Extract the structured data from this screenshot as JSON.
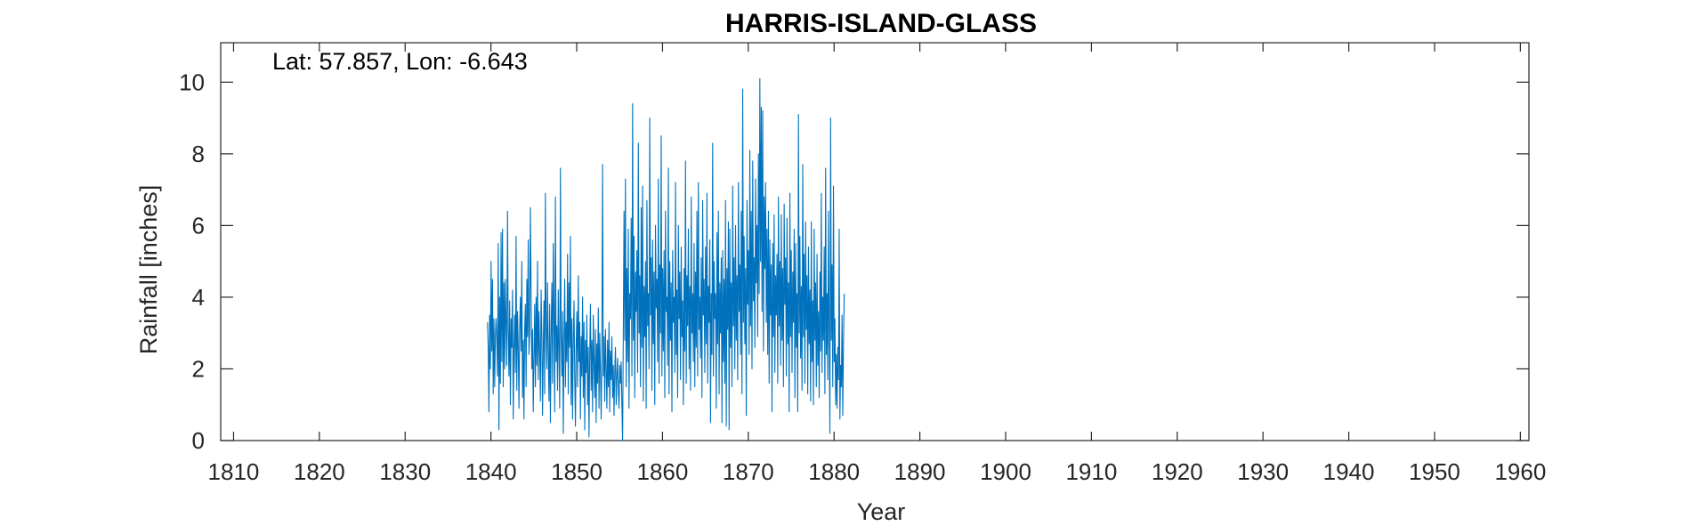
{
  "chart_data": {
    "type": "line",
    "title": "HARRIS-ISLAND-GLASS",
    "xlabel": "Year",
    "ylabel": "Rainfall [inches]",
    "annotation": "Lat: 57.857, Lon: -6.643",
    "xlim": [
      1808.5,
      1961
    ],
    "ylim": [
      0,
      11.1
    ],
    "xticks": [
      1810,
      1820,
      1830,
      1840,
      1850,
      1860,
      1870,
      1880,
      1890,
      1900,
      1910,
      1920,
      1930,
      1940,
      1950,
      1960
    ],
    "yticks": [
      0,
      2,
      4,
      6,
      8,
      10
    ],
    "grid": false,
    "line_color": "#0072BD",
    "series": [
      {
        "x_start": 1839.6,
        "x_step": 0.08333,
        "values": [
          3.3,
          2.6,
          0.8,
          3.5,
          2.0,
          5.0,
          2.5,
          4.5,
          1.3,
          3.4,
          1.5,
          2.9,
          3.4,
          2.8,
          1.8,
          5.5,
          0.3,
          4.0,
          1.6,
          5.8,
          2.2,
          5.9,
          1.5,
          4.4,
          2.0,
          4.5,
          3.2,
          2.1,
          6.4,
          3.1,
          1.8,
          3.9,
          1.0,
          3.4,
          2.6,
          4.2,
          0.6,
          2.5,
          3.5,
          1.9,
          5.7,
          1.4,
          3.6,
          2.6,
          0.9,
          3.1,
          4.0,
          2.5,
          5.0,
          1.2,
          2.8,
          0.6,
          3.1,
          3.8,
          1.5,
          4.5,
          2.9,
          5.6,
          2.4,
          3.0,
          6.5,
          4.2,
          2.0,
          3.1,
          0.8,
          2.3,
          3.8,
          1.5,
          4.0,
          2.1,
          5.0,
          1.7,
          3.6,
          2.5,
          1.1,
          4.2,
          3.0,
          0.7,
          2.6,
          3.9,
          1.3,
          6.9,
          3.1,
          2.0,
          4.4,
          2.4,
          1.1,
          3.8,
          0.5,
          2.9,
          4.4,
          1.6,
          5.5,
          3.4,
          0.8,
          6.8,
          2.2,
          3.2,
          1.4,
          4.2,
          2.5,
          0.9,
          7.6,
          3.0,
          1.8,
          3.6,
          0.2,
          2.7,
          4.5,
          1.5,
          3.3,
          2.2,
          5.2,
          1.3,
          4.4,
          2.6,
          5.7,
          1.0,
          3.4,
          0.6,
          2.8,
          3.9,
          1.8,
          0.4,
          2.6,
          3.6,
          1.5,
          4.6,
          2.2,
          3.3,
          0.6,
          2.9,
          1.8,
          4.0,
          1.2,
          3.3,
          0.3,
          2.8,
          1.9,
          3.5,
          1.0,
          2.6,
          0.1,
          2.4,
          3.8,
          1.4,
          2.8,
          0.8,
          3.5,
          2.2,
          1.2,
          3.1,
          0.5,
          2.7,
          1.6,
          3.7,
          0.9,
          3.0,
          1.9,
          0.6,
          2.4,
          7.7,
          1.8,
          2.9,
          1.1,
          3.1,
          2.0,
          0.9,
          2.8,
          1.5,
          3.3,
          0.8,
          2.5,
          1.7,
          2.9,
          1.2,
          2.1,
          0.7,
          1.9,
          2.6,
          1.0,
          1.8,
          2.3,
          1.4,
          0.9,
          2.1,
          1.6,
          2.2,
          1.0,
          0.0,
          3.1,
          6.4,
          2.8,
          7.3,
          1.5,
          4.8,
          2.2,
          5.9,
          0.9,
          4.1,
          3.4,
          6.2,
          1.8,
          9.4,
          2.8,
          5.7,
          1.2,
          4.7,
          3.6,
          5.3,
          1.9,
          8.3,
          3.0,
          4.6,
          1.5,
          6.5,
          2.6,
          7.1,
          1.1,
          4.3,
          2.9,
          5.0,
          0.9,
          6.7,
          3.2,
          4.1,
          2.0,
          9.0,
          3.5,
          5.1,
          1.4,
          5.6,
          2.7,
          4.7,
          1.0,
          6.0,
          3.7,
          4.5,
          2.2,
          7.3,
          1.6,
          4.9,
          3.0,
          8.5,
          1.8,
          4.8,
          2.5,
          5.3,
          1.2,
          6.4,
          3.6,
          4.0,
          2.1,
          7.6,
          1.3,
          5.0,
          2.8,
          4.4,
          0.8,
          5.3,
          3.3,
          4.0,
          1.9,
          7.2,
          2.4,
          4.2,
          1.2,
          6.0,
          3.4,
          4.7,
          1.7,
          5.4,
          2.9,
          3.9,
          1.0,
          4.8,
          2.5,
          7.8,
          1.6,
          4.6,
          3.2,
          5.9,
          2.0,
          4.3,
          1.4,
          6.8,
          3.0,
          4.1,
          2.2,
          5.5,
          1.5,
          4.7,
          2.6,
          6.4,
          1.8,
          7.2,
          3.1,
          4.0,
          2.3,
          5.1,
          1.2,
          6.7,
          3.5,
          4.5,
          1.9,
          5.4,
          2.7,
          6.9,
          1.6,
          4.3,
          3.3,
          5.6,
          0.5,
          4.1,
          2.4,
          8.3,
          1.8,
          5.0,
          3.4,
          4.1,
          0.9,
          5.8,
          2.7,
          6.4,
          1.3,
          4.4,
          3.0,
          5.1,
          0.5,
          5.3,
          2.2,
          4.5,
          1.6,
          6.7,
          0.4,
          4.8,
          3.1,
          6.1,
          0.3,
          5.9,
          2.6,
          4.4,
          1.5,
          7.1,
          3.2,
          5.1,
          2.0,
          6.0,
          2.8,
          4.6,
          1.7,
          7.2,
          3.6,
          4.9,
          2.4,
          6.4,
          1.3,
          9.8,
          3.3,
          5.7,
          2.7,
          4.8,
          0.7,
          6.7,
          3.8,
          5.3,
          2.4,
          8.1,
          3.2,
          6.4,
          2.0,
          7.8,
          3.9,
          5.1,
          2.6,
          7.3,
          4.4,
          6.0,
          2.9,
          8.0,
          4.1,
          10.1,
          5.0,
          9.3,
          3.6,
          9.2,
          2.5,
          6.8,
          4.8,
          7.2,
          3.3,
          5.9,
          2.4,
          6.4,
          1.6,
          5.6,
          3.5,
          4.9,
          0.8,
          5.5,
          2.9,
          6.3,
          1.9,
          4.6,
          3.5,
          5.2,
          1.6,
          6.8,
          3.2,
          5.0,
          2.1,
          6.3,
          2.8,
          4.8,
          1.5,
          6.6,
          3.8,
          5.1,
          1.8,
          6.2,
          2.7,
          4.4,
          0.8,
          6.9,
          2.9,
          5.3,
          1.9,
          4.7,
          3.3,
          5.9,
          1.2,
          5.5,
          2.6,
          4.1,
          0.8,
          9.1,
          3.0,
          5.7,
          2.3,
          4.3,
          1.4,
          7.7,
          2.9,
          5.2,
          1.6,
          6.1,
          3.1,
          4.6,
          1.3,
          5.4,
          2.7,
          4.2,
          1.1,
          6.1,
          2.2,
          3.9,
          1.0,
          5.9,
          2.8,
          4.4,
          1.5,
          5.2,
          2.1,
          3.6,
          1.2,
          4.7,
          2.5,
          6.9,
          1.9,
          4.0,
          2.8,
          5.4,
          1.3,
          7.6,
          2.4,
          4.1,
          1.7,
          6.4,
          3.0,
          0.2,
          9.0,
          2.8,
          4.9,
          1.5,
          7.1,
          2.2,
          3.4,
          1.0,
          2.4,
          0.9,
          2.6,
          1.7,
          5.9,
          0.6,
          2.1,
          1.5,
          3.5,
          0.7,
          2.7,
          4.1
        ]
      }
    ]
  }
}
